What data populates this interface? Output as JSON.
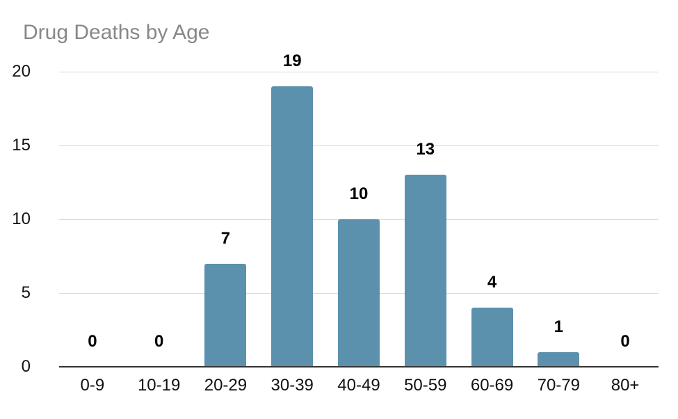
{
  "chart_data": {
    "type": "bar",
    "title": "Drug Deaths by Age",
    "categories": [
      "0-9",
      "10-19",
      "20-29",
      "30-39",
      "40-49",
      "50-59",
      "60-69",
      "70-79",
      "80+"
    ],
    "values": [
      0,
      0,
      7,
      19,
      10,
      13,
      4,
      1,
      0
    ],
    "xlabel": "",
    "ylabel": "",
    "ylim": [
      0,
      20
    ],
    "yticks": [
      0,
      5,
      10,
      15,
      20
    ],
    "grid": true,
    "legend_position": "none",
    "data_labels": true
  },
  "colors": {
    "bar": "#5b91ad",
    "title": "#888888",
    "grid": "#d9d9d9",
    "axis_line": "#333333",
    "tick_label": "#111111",
    "value_label": "#000000",
    "background": "#ffffff"
  }
}
